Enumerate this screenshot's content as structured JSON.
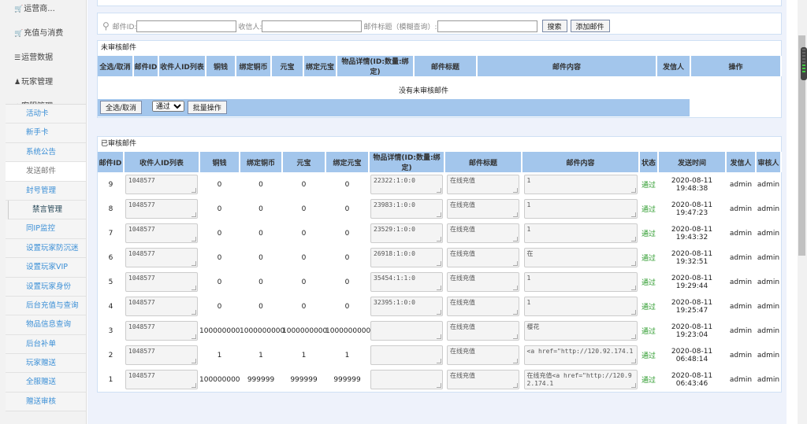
{
  "sidebar": {
    "top_items": [
      {
        "label": "运营商...",
        "icon": "cart-icon"
      },
      {
        "label": "充值与消费",
        "icon": "cart-icon"
      },
      {
        "label": "运营数据",
        "icon": "list-icon"
      },
      {
        "label": "玩家管理",
        "icon": "user-icon"
      },
      {
        "label": "客服管理",
        "icon": "star-icon"
      }
    ],
    "sub_items": [
      "活动卡",
      "新手卡",
      "系统公告",
      "发送邮件",
      "封号管理",
      "禁言管理",
      "同IP监控",
      "设置玩家防沉迷",
      "设置玩家VIP",
      "设置玩家身份",
      "后台充值与查询",
      "物品信息查询",
      "后台补单",
      "玩家赠送",
      "全服赠送",
      "赠送审核"
    ],
    "active": "发送邮件"
  },
  "search": {
    "mail_id_label": "邮件ID:",
    "recipient_label": "收信人:",
    "title_label": "邮件标题（模糊查询）:",
    "search_button": "搜索",
    "add_button": "添加邮件"
  },
  "pending": {
    "title": "未审核邮件",
    "columns": [
      "全选/取消",
      "邮件ID",
      "收件人ID列表",
      "铜钱",
      "绑定铜币",
      "元宝",
      "绑定元宝",
      "物品详情(ID:数量:绑定)",
      "邮件标题",
      "邮件内容",
      "发信人",
      "操作"
    ],
    "empty_text": "没有未审核邮件",
    "select_all_button": "全选/取消",
    "action_select": "通过",
    "batch_button": "批量操作"
  },
  "approved": {
    "title": "已审核邮件",
    "columns": [
      "邮件ID",
      "收件人ID列表",
      "铜钱",
      "绑定铜币",
      "元宝",
      "绑定元宝",
      "物品详情(ID:数量:绑定)",
      "邮件标题",
      "邮件内容",
      "状态",
      "发送时间",
      "发信人",
      "审核人"
    ],
    "rows": [
      {
        "id": "9",
        "recipients": "1048577",
        "copper": "0",
        "bound_copper": "0",
        "yuanbao": "0",
        "bound_yuanbao": "0",
        "items": "22322:1:0:0",
        "title": "在线充值",
        "content": "1",
        "status": "通过",
        "time": "2020-08-11 19:48:38",
        "sender": "admin",
        "reviewer": "admin"
      },
      {
        "id": "8",
        "recipients": "1048577",
        "copper": "0",
        "bound_copper": "0",
        "yuanbao": "0",
        "bound_yuanbao": "0",
        "items": "23983:1:0:0",
        "title": "在线充值",
        "content": "1",
        "status": "通过",
        "time": "2020-08-11 19:47:23",
        "sender": "admin",
        "reviewer": "admin"
      },
      {
        "id": "7",
        "recipients": "1048577",
        "copper": "0",
        "bound_copper": "0",
        "yuanbao": "0",
        "bound_yuanbao": "0",
        "items": "23529:1:0:0",
        "title": "在线充值",
        "content": "1",
        "status": "通过",
        "time": "2020-08-11 19:43:32",
        "sender": "admin",
        "reviewer": "admin"
      },
      {
        "id": "6",
        "recipients": "1048577",
        "copper": "0",
        "bound_copper": "0",
        "yuanbao": "0",
        "bound_yuanbao": "0",
        "items": "26918:1:0:0",
        "title": "在线充值",
        "content": "在",
        "status": "通过",
        "time": "2020-08-11 19:32:51",
        "sender": "admin",
        "reviewer": "admin"
      },
      {
        "id": "5",
        "recipients": "1048577",
        "copper": "0",
        "bound_copper": "0",
        "yuanbao": "0",
        "bound_yuanbao": "0",
        "items": "35454:1:1:0",
        "title": "在线充值",
        "content": "1",
        "status": "通过",
        "time": "2020-08-11 19:29:44",
        "sender": "admin",
        "reviewer": "admin"
      },
      {
        "id": "4",
        "recipients": "1048577",
        "copper": "0",
        "bound_copper": "0",
        "yuanbao": "0",
        "bound_yuanbao": "0",
        "items": "32395:1:0:0",
        "title": "在线充值",
        "content": "1",
        "status": "通过",
        "time": "2020-08-11 19:25:47",
        "sender": "admin",
        "reviewer": "admin"
      },
      {
        "id": "3",
        "recipients": "1048577",
        "copper": "100000000",
        "bound_copper": "1000000000",
        "yuanbao": "1000000000",
        "bound_yuanbao": "1000000000",
        "items": "",
        "title": "在线充值",
        "content": "樱花",
        "status": "通过",
        "time": "2020-08-11 19:23:04",
        "sender": "admin",
        "reviewer": "admin"
      },
      {
        "id": "2",
        "recipients": "1048577",
        "copper": "1",
        "bound_copper": "1",
        "yuanbao": "1",
        "bound_yuanbao": "1",
        "items": "",
        "title": "在线充值",
        "content": "<a href=\"http://120.92.174.1",
        "status": "通过",
        "time": "2020-08-11 06:48:14",
        "sender": "admin",
        "reviewer": "admin"
      },
      {
        "id": "1",
        "recipients": "1048577",
        "copper": "100000000",
        "bound_copper": "999999",
        "yuanbao": "999999",
        "bound_yuanbao": "999999",
        "items": "",
        "title": "在线充值",
        "content": "在线充值<a href=\"http://120.92.174.1",
        "status": "通过",
        "time": "2020-08-11 06:43:46",
        "sender": "admin",
        "reviewer": "admin"
      }
    ]
  },
  "colors": {
    "header": "#a3c6ec",
    "link": "#3b8fd6",
    "approved": "#2a9a2a",
    "background": "#eef2fb"
  }
}
